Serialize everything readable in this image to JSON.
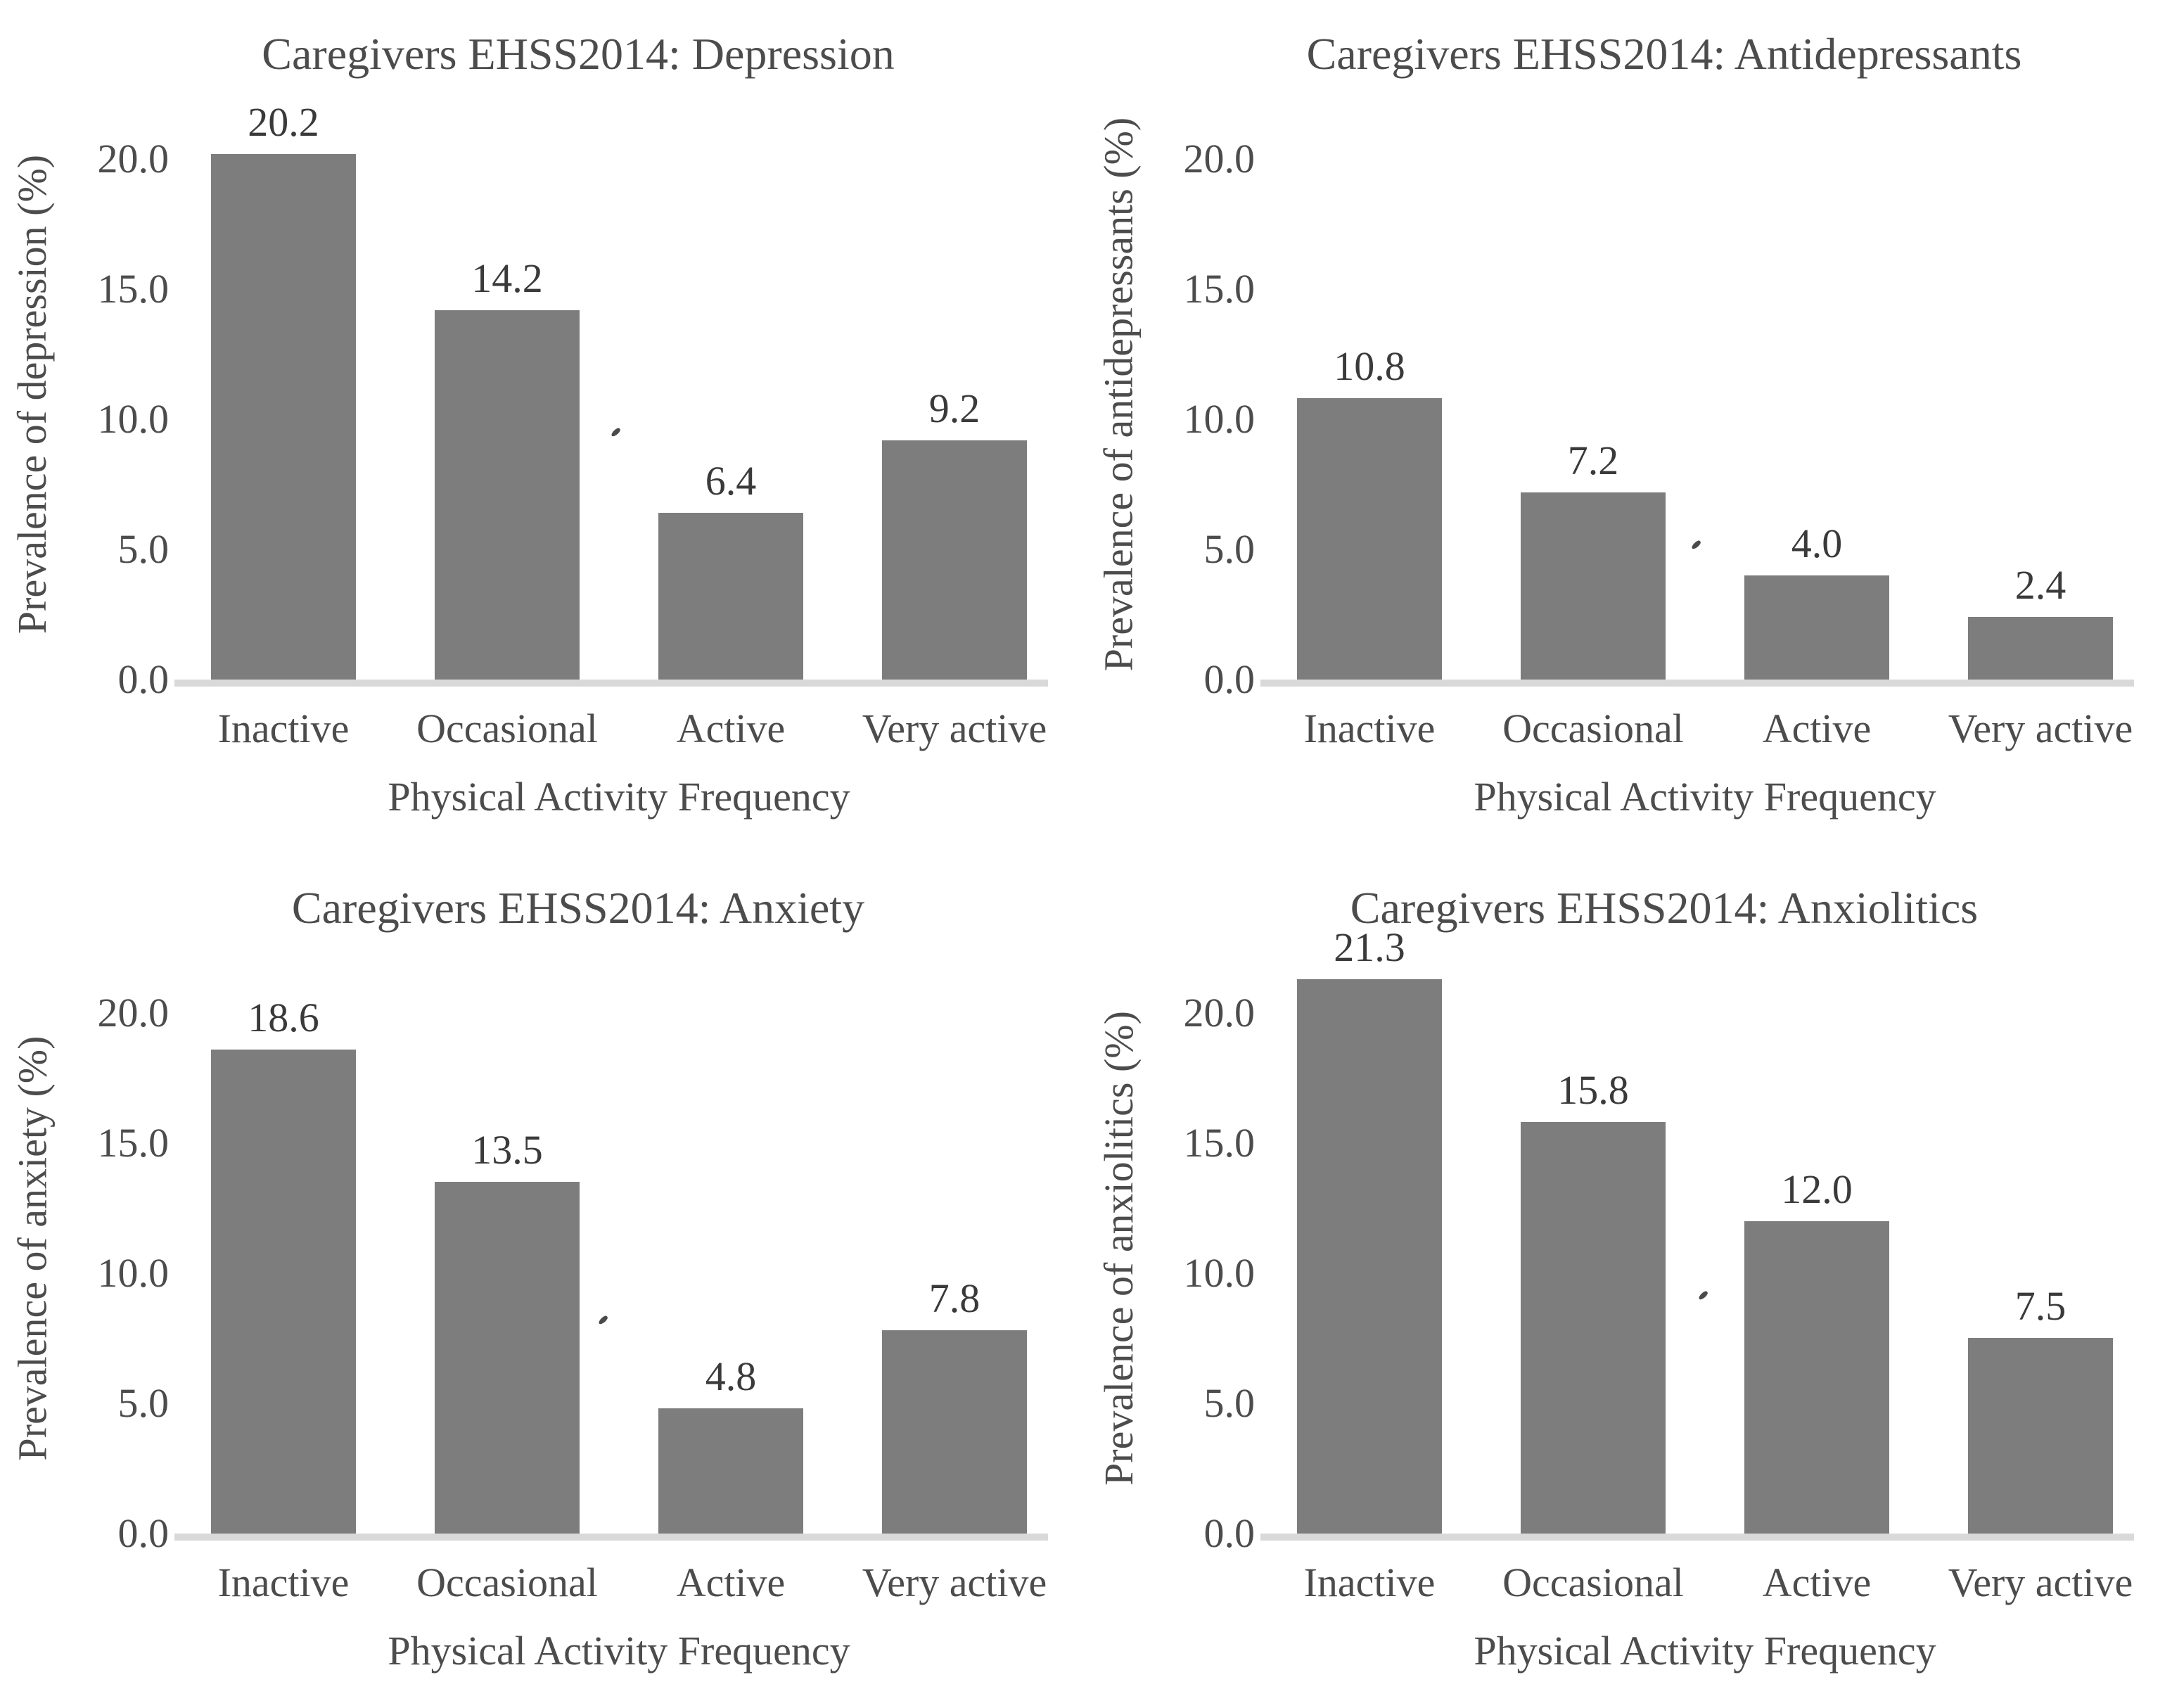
{
  "figure": {
    "background": "#ffffff",
    "layout": "2x2 grid of bar charts"
  },
  "colors": {
    "bar": "#7d7d7d",
    "baseline": "#d9d9d9",
    "title-text": "#4c4c4c",
    "axis-text": "#4c4c4c",
    "value-text": "#3a3a3a"
  },
  "chart_data": [
    {
      "type": "bar",
      "title": "Caregivers EHSS2014: Depression",
      "categories": [
        "Inactive",
        "Occasional",
        "Active",
        "Very active"
      ],
      "values": [
        20.2,
        14.2,
        6.4,
        9.2
      ],
      "data_labels": [
        "20.2",
        "14.2",
        "6.4",
        "9.2"
      ],
      "xlabel": "Physical Activity Frequency",
      "ylabel": "Prevalence of depression (%)",
      "ylim": [
        0,
        20
      ],
      "yticks": [
        0,
        5,
        10,
        15,
        20
      ],
      "ytick_labels": [
        "0.0",
        "5.0",
        "10.0",
        "15.0",
        "20.0"
      ],
      "grid": false,
      "legend": false,
      "bar_color": "#7d7d7d"
    },
    {
      "type": "bar",
      "title": "Caregivers EHSS2014: Antidepressants",
      "categories": [
        "Inactive",
        "Occasional",
        "Active",
        "Very active"
      ],
      "values": [
        10.8,
        7.2,
        4.0,
        2.4
      ],
      "data_labels": [
        "10.8",
        "7.2",
        "4.0",
        "2.4"
      ],
      "xlabel": "Physical Activity Frequency",
      "ylabel": "Prevalence of antidepressants (%)",
      "ylim": [
        0,
        20
      ],
      "yticks": [
        0,
        5,
        10,
        15,
        20
      ],
      "ytick_labels": [
        "0.0",
        "5.0",
        "10.0",
        "15.0",
        "20.0"
      ],
      "grid": false,
      "legend": false,
      "bar_color": "#7d7d7d"
    },
    {
      "type": "bar",
      "title": "Caregivers EHSS2014: Anxiety",
      "categories": [
        "Inactive",
        "Occasional",
        "Active",
        "Very active"
      ],
      "values": [
        18.6,
        13.5,
        4.8,
        7.8
      ],
      "data_labels": [
        "18.6",
        "13.5",
        "4.8",
        "7.8"
      ],
      "xlabel": "Physical Activity Frequency",
      "ylabel": "Prevalence of anxiety (%)",
      "ylim": [
        0,
        20
      ],
      "yticks": [
        0,
        5,
        10,
        15,
        20
      ],
      "ytick_labels": [
        "0.0",
        "5.0",
        "10.0",
        "15.0",
        "20.0"
      ],
      "grid": false,
      "legend": false,
      "bar_color": "#7d7d7d"
    },
    {
      "type": "bar",
      "title": "Caregivers EHSS2014: Anxiolitics",
      "categories": [
        "Inactive",
        "Occasional",
        "Active",
        "Very active"
      ],
      "values": [
        21.3,
        15.8,
        12.0,
        7.5
      ],
      "data_labels": [
        "21.3",
        "15.8",
        "12.0",
        "7.5"
      ],
      "xlabel": "Physical Activity Frequency",
      "ylabel": "Prevalence of anxiolitics (%)",
      "ylim": [
        0,
        20
      ],
      "yticks": [
        0,
        5,
        10,
        15,
        20
      ],
      "ytick_labels": [
        "0.0",
        "5.0",
        "10.0",
        "15.0",
        "20.0"
      ],
      "grid": false,
      "legend": false,
      "bar_color": "#7d7d7d"
    }
  ]
}
